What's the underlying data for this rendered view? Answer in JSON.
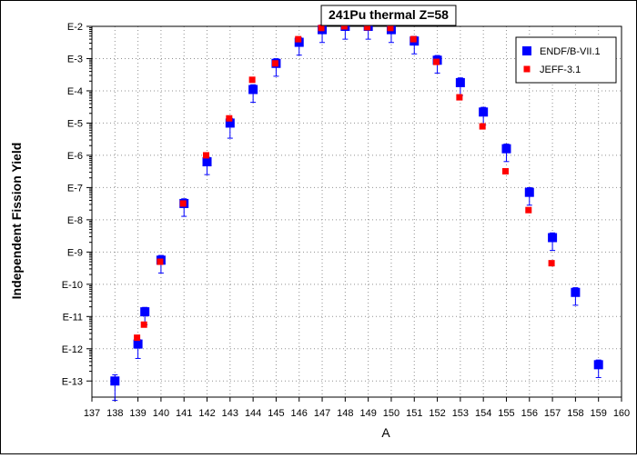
{
  "chart_data": {
    "type": "scatter",
    "title": "241Pu thermal Z=58",
    "xlabel": "A",
    "ylabel": "Independent Fission Yield",
    "xlim": [
      137,
      160
    ],
    "ylim_log10": [
      -13.5,
      -2
    ],
    "x_ticks": [
      "137",
      "138",
      "139",
      "140",
      "141",
      "142",
      "143",
      "144",
      "145",
      "146",
      "147",
      "148",
      "149",
      "150",
      "151",
      "152",
      "153",
      "154",
      "155",
      "156",
      "157",
      "158",
      "159",
      "160"
    ],
    "y_ticks": [
      "E-2",
      "E-3",
      "E-4",
      "E-5",
      "E-6",
      "E-7",
      "E-8",
      "E-9",
      "E-10",
      "E-11",
      "E-12",
      "E-13"
    ],
    "grid": true,
    "legend_position": "top-right",
    "y_scale": "log",
    "series": [
      {
        "name": "ENDF/B-VII.1",
        "color": "#0000ff",
        "marker": "square",
        "points": [
          {
            "x": 138,
            "y": 1e-13,
            "err_lo": 1.3e-13,
            "err_hi": 1.4e-13
          },
          {
            "x": 139,
            "y": 1.4e-12,
            "err_lo": 1.5e-12,
            "err_hi": 1.3e-12
          },
          {
            "x": 139.3,
            "y": 1.4e-11,
            "err_lo": 1.4e-11,
            "err_hi": 1.3e-11
          },
          {
            "x": 140,
            "y": 5.6e-10,
            "err_lo": 5.6e-10,
            "err_hi": 5.6e-10
          },
          {
            "x": 141,
            "y": 3.2e-08,
            "err_lo": 3.2e-08,
            "err_hi": 3.2e-08
          },
          {
            "x": 142,
            "y": 6.3e-07,
            "err_lo": 6.3e-07,
            "err_hi": 6.3e-07
          },
          {
            "x": 143,
            "y": 1e-05,
            "err_lo": 1.1e-05,
            "err_hi": 1e-05
          },
          {
            "x": 144,
            "y": 0.00011,
            "err_lo": 0.00011,
            "err_hi": 0.00011
          },
          {
            "x": 145,
            "y": 0.00071,
            "err_lo": 0.00071,
            "err_hi": 0.00071
          },
          {
            "x": 146,
            "y": 0.0032,
            "err_lo": 0.0032,
            "err_hi": 0.0032
          },
          {
            "x": 147,
            "y": 0.0079,
            "err_lo": 0.0079,
            "err_hi": 0.0079
          },
          {
            "x": 148,
            "y": 0.01,
            "err_lo": 0.01,
            "err_hi": 0.01
          },
          {
            "x": 149,
            "y": 0.01,
            "err_lo": 0.01,
            "err_hi": 0.01
          },
          {
            "x": 150,
            "y": 0.0079,
            "err_lo": 0.0079,
            "err_hi": 0.0079
          },
          {
            "x": 151,
            "y": 0.0035,
            "err_lo": 0.0035,
            "err_hi": 0.0035
          },
          {
            "x": 152,
            "y": 0.00089,
            "err_lo": 0.00089,
            "err_hi": 0.00089
          },
          {
            "x": 153,
            "y": 0.00018,
            "err_lo": 0.00018,
            "err_hi": 0.00018
          },
          {
            "x": 154,
            "y": 2.2e-05,
            "err_lo": 2.2e-05,
            "err_hi": 2.2e-05
          },
          {
            "x": 155,
            "y": 1.6e-06,
            "err_lo": 1.6e-06,
            "err_hi": 1.6e-06
          },
          {
            "x": 156,
            "y": 7.1e-08,
            "err_lo": 7.1e-08,
            "err_hi": 7.1e-08
          },
          {
            "x": 157,
            "y": 2.8e-09,
            "err_lo": 2.8e-09,
            "err_hi": 2.8e-09
          },
          {
            "x": 158,
            "y": 5.6e-11,
            "err_lo": 5.6e-11,
            "err_hi": 5.6e-11
          },
          {
            "x": 159,
            "y": 3.2e-13,
            "err_lo": 3.2e-13,
            "err_hi": 3.2e-13
          }
        ]
      },
      {
        "name": "JEFF-3.1",
        "color": "#ff0000",
        "marker": "square",
        "points": [
          {
            "x": 139,
            "y": 2.2e-12
          },
          {
            "x": 139.3,
            "y": 5.6e-12
          },
          {
            "x": 140,
            "y": 5e-10
          },
          {
            "x": 141,
            "y": 3.2e-08
          },
          {
            "x": 142,
            "y": 1e-06
          },
          {
            "x": 143,
            "y": 1.4e-05
          },
          {
            "x": 144,
            "y": 0.00022
          },
          {
            "x": 145,
            "y": 0.00071
          },
          {
            "x": 146,
            "y": 0.004
          },
          {
            "x": 147,
            "y": 0.0089
          },
          {
            "x": 148,
            "y": 0.01
          },
          {
            "x": 149,
            "y": 0.0094
          },
          {
            "x": 150,
            "y": 0.0089
          },
          {
            "x": 151,
            "y": 0.004
          },
          {
            "x": 152,
            "y": 0.00079
          },
          {
            "x": 153,
            "y": 6.3e-05
          },
          {
            "x": 154,
            "y": 7.9e-06
          },
          {
            "x": 155,
            "y": 3.2e-07
          },
          {
            "x": 156,
            "y": 2e-08
          },
          {
            "x": 157,
            "y": 4.5e-10
          }
        ]
      }
    ]
  }
}
